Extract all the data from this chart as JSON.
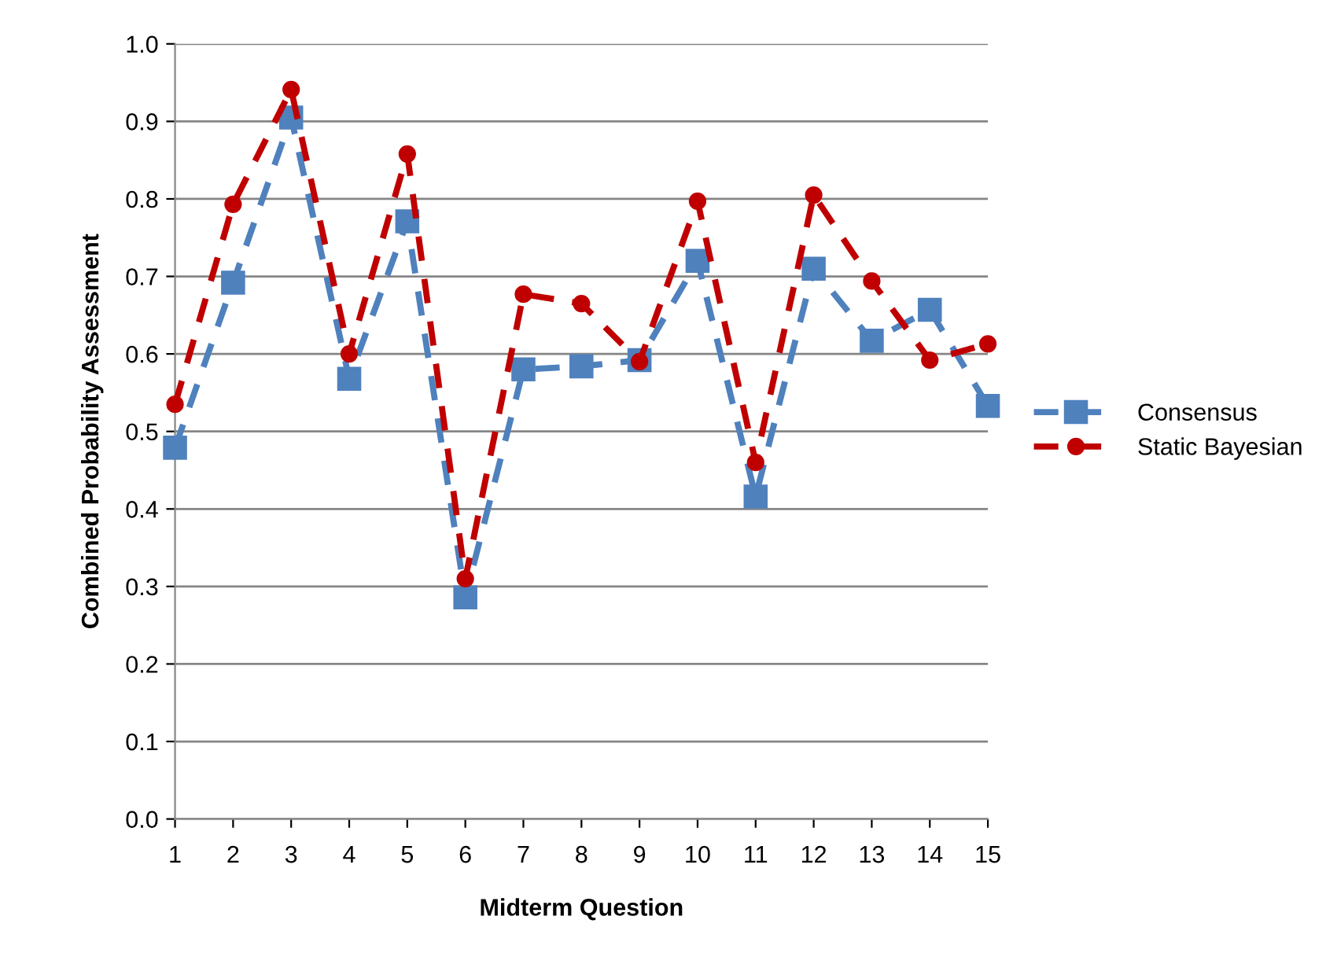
{
  "chart_data": {
    "type": "line",
    "xlabel": "Midterm Question",
    "ylabel": "Combined Probability Assessment",
    "x": [
      1,
      2,
      3,
      4,
      5,
      6,
      7,
      8,
      9,
      10,
      11,
      12,
      13,
      14,
      15
    ],
    "xlim": [
      1,
      15
    ],
    "xticks": [
      1,
      2,
      3,
      4,
      5,
      6,
      7,
      8,
      9,
      10,
      11,
      12,
      13,
      14,
      15
    ],
    "ylim": [
      0,
      1.0
    ],
    "yticks": [
      {
        "value": 0,
        "label": "0.0"
      },
      {
        "value": 0.1,
        "label": "0.1"
      },
      {
        "value": 0.2,
        "label": "0.2"
      },
      {
        "value": 0.3,
        "label": "0.3"
      },
      {
        "value": 0.4,
        "label": "0.4"
      },
      {
        "value": 0.5,
        "label": "0.5"
      },
      {
        "value": 0.6,
        "label": "0.6"
      },
      {
        "value": 0.7,
        "label": "0.7"
      },
      {
        "value": 0.8,
        "label": "0.8"
      },
      {
        "value": 0.9,
        "label": "0.9"
      },
      {
        "value": 1.0,
        "label": "1.0"
      }
    ],
    "grid": "y",
    "legend": "right",
    "line_style": "dashed",
    "series": [
      {
        "name": "Consensus",
        "color": "#4f81bd",
        "marker": "square",
        "values": [
          0.479,
          0.692,
          0.905,
          0.568,
          0.771,
          0.286,
          0.58,
          0.584,
          0.592,
          0.72,
          0.416,
          0.71,
          0.617,
          0.657,
          0.533
        ]
      },
      {
        "name": "Static Bayesian",
        "color": "#c00000",
        "marker": "circle",
        "values": [
          0.535,
          0.793,
          0.941,
          0.6,
          0.858,
          0.31,
          0.677,
          0.665,
          0.59,
          0.797,
          0.46,
          0.805,
          0.694,
          0.592,
          0.613
        ]
      }
    ]
  }
}
